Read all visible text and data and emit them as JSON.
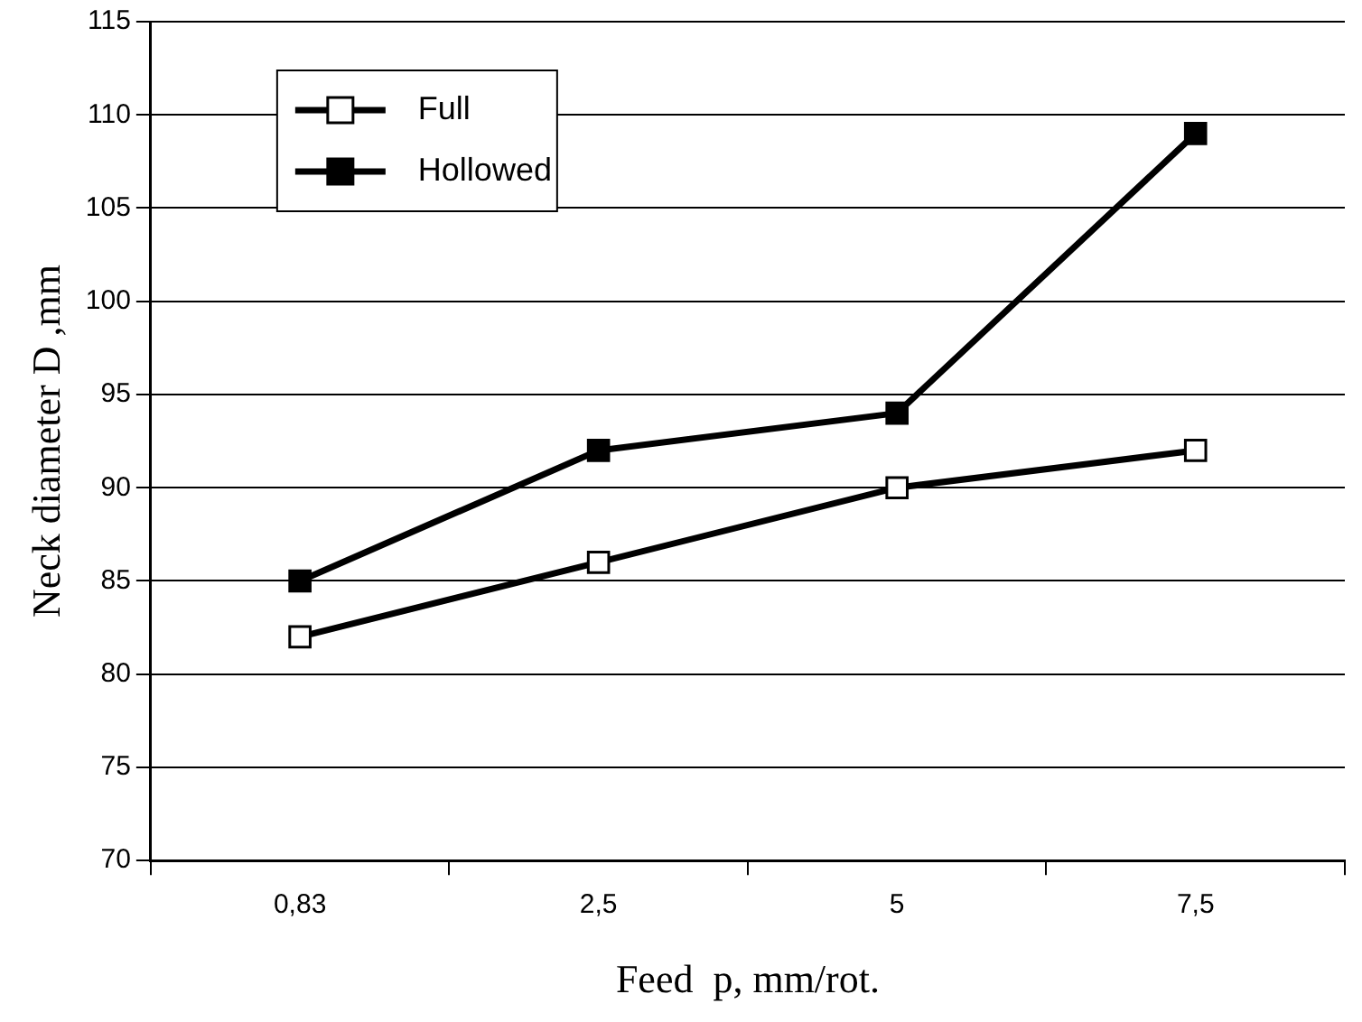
{
  "chart_data": {
    "type": "line",
    "xlabel": "Feed  p, mm/rot.",
    "ylabel": "Neck diameter D ,mm",
    "categories": [
      "0,83",
      "2,5",
      "5",
      "7,5"
    ],
    "series": [
      {
        "name": "Full",
        "color": "#ffffff",
        "values": [
          82,
          86,
          90,
          92
        ]
      },
      {
        "name": "Hollowed",
        "color": "#000000",
        "values": [
          85,
          92,
          94,
          109
        ]
      }
    ],
    "ylim": [
      70,
      115
    ],
    "yticks": [
      70,
      75,
      80,
      85,
      90,
      95,
      100,
      105,
      110,
      115
    ],
    "grid": "y",
    "legend": "top left",
    "marker": "square",
    "line_style": "solid"
  }
}
